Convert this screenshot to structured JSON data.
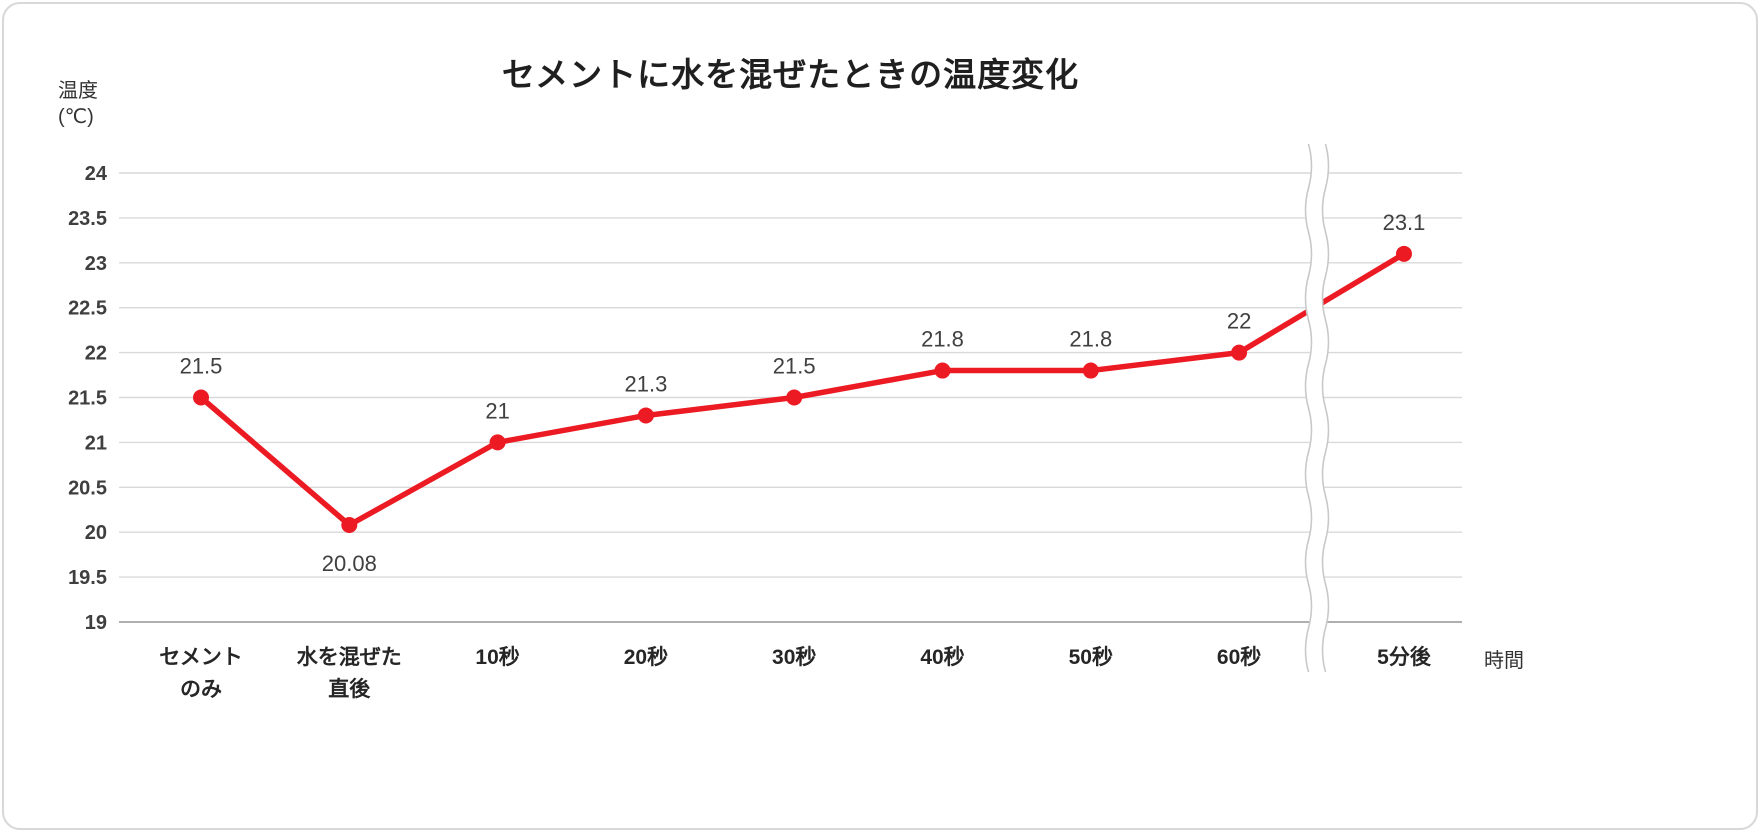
{
  "chart_data": {
    "type": "line",
    "title": "セメントに水を混ぜたときの温度変化",
    "ylabel": "温度\n(℃)",
    "xlabel": "時間",
    "categories": [
      "セメント\nのみ",
      "水を混ぜた\n直後",
      "10秒",
      "20秒",
      "30秒",
      "40秒",
      "50秒",
      "60秒",
      "5分後"
    ],
    "values": [
      21.5,
      20.08,
      21,
      21.3,
      21.5,
      21.8,
      21.8,
      22,
      23.1
    ],
    "data_labels": [
      "21.5",
      "20.08",
      "21",
      "21.3",
      "21.5",
      "21.8",
      "21.8",
      "22",
      "23.1"
    ],
    "label_positions": [
      "above",
      "below",
      "above",
      "above",
      "above",
      "above",
      "above",
      "above",
      "above"
    ],
    "ylim": [
      19,
      24
    ],
    "ytick_step": 0.5,
    "grid": true,
    "legend": "none",
    "axis_break": {
      "between": [
        "60秒",
        "5分後"
      ]
    },
    "colors": {
      "series": "#EC1B23",
      "grid": "#D9D9D9",
      "axis": "#AFAFAF",
      "break_lines": "#C9C9C9",
      "tick_text": "#3F3F3F",
      "category_text": "#262626",
      "label_text": "#404040"
    }
  }
}
